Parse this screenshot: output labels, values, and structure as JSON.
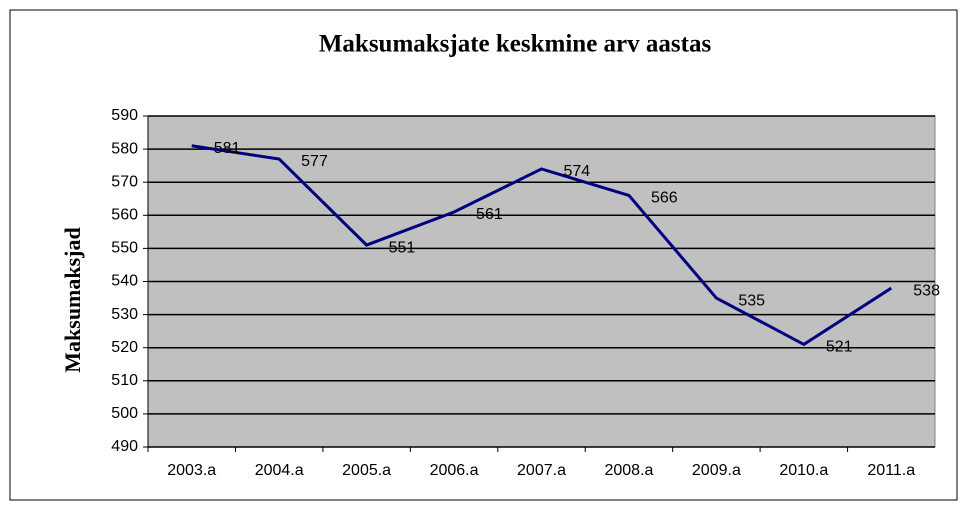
{
  "chart_data": {
    "type": "line",
    "title": "Maksumaksjate keskmine arv aastas",
    "y_label": "Maksumaksjad",
    "categories": [
      "2003.a",
      "2004.a",
      "2005.a",
      "2006.a",
      "2007.a",
      "2008.a",
      "2009.a",
      "2010.a",
      "2011.a"
    ],
    "values": [
      581,
      577,
      551,
      561,
      574,
      566,
      535,
      521,
      538
    ],
    "color": "#000080",
    "ylim": [
      490,
      590
    ],
    "yticks": [
      490,
      500,
      510,
      520,
      530,
      540,
      550,
      560,
      570,
      580,
      590
    ],
    "grid": true
  }
}
